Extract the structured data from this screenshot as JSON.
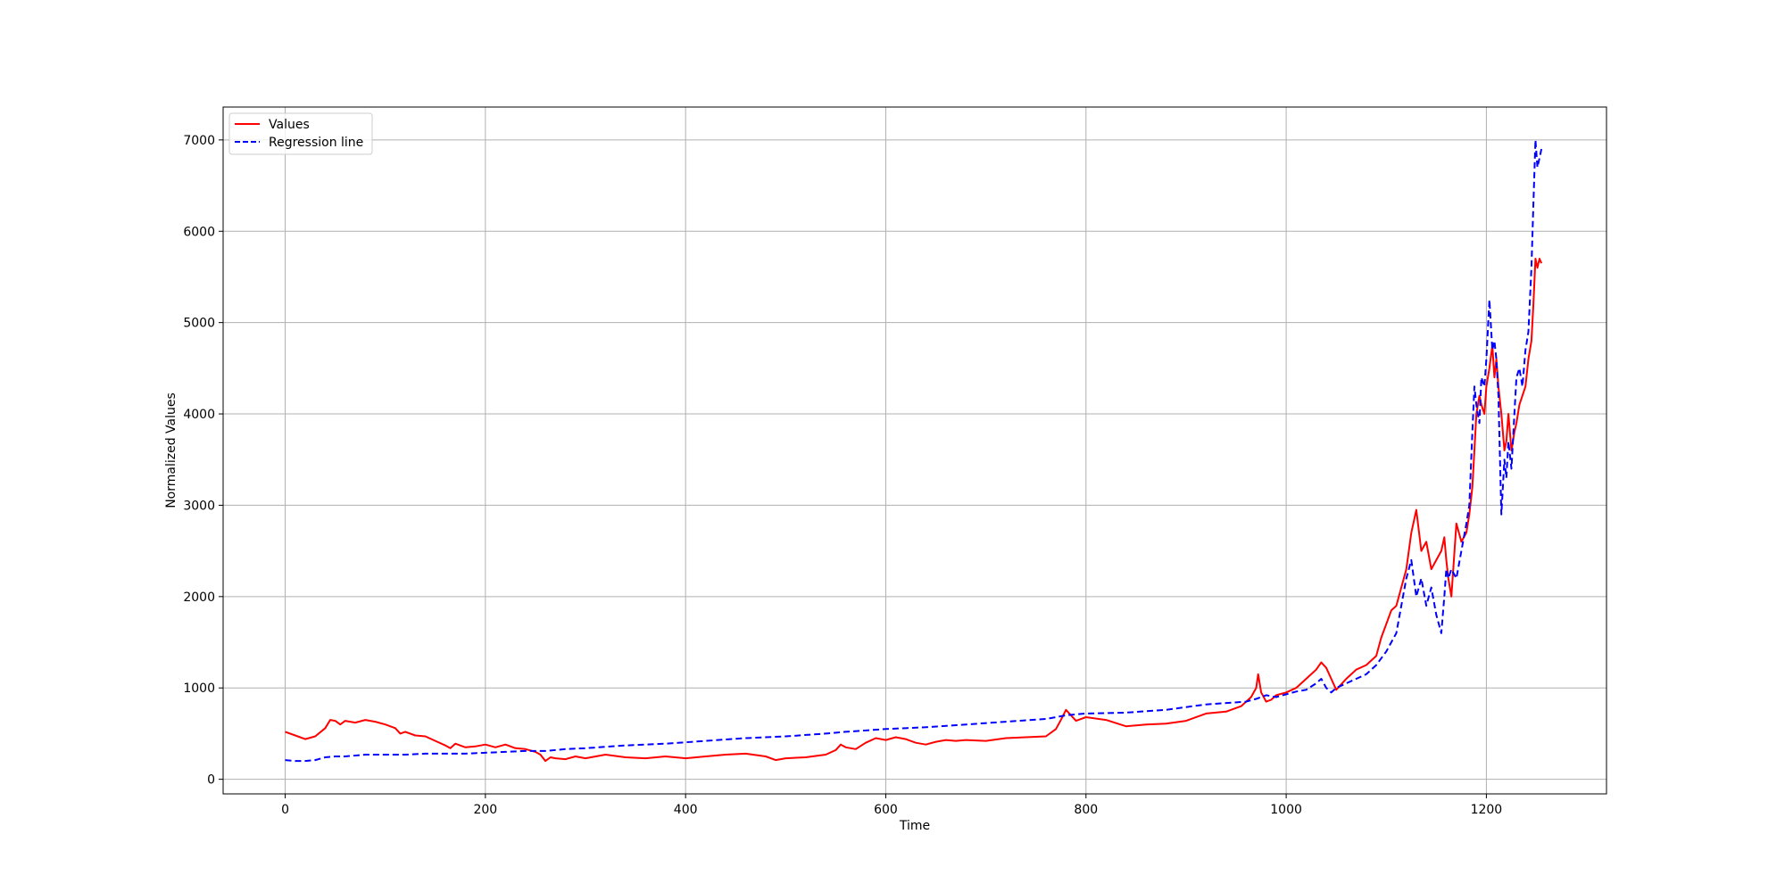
{
  "chart_data": {
    "type": "line",
    "title": "",
    "xlabel": "Time",
    "ylabel": "Normalized Values",
    "xlim": [
      -62,
      1320
    ],
    "ylim": [
      -160,
      7360
    ],
    "xticks": [
      0,
      200,
      400,
      600,
      800,
      1000,
      1200
    ],
    "yticks": [
      0,
      1000,
      2000,
      3000,
      4000,
      5000,
      6000,
      7000
    ],
    "grid": true,
    "legend_position": "top-left",
    "series": [
      {
        "name": "Values",
        "color": "#ff0000",
        "style": "solid",
        "x": [
          0,
          10,
          20,
          30,
          40,
          45,
          50,
          55,
          60,
          70,
          80,
          90,
          100,
          110,
          115,
          120,
          130,
          140,
          150,
          160,
          165,
          170,
          180,
          190,
          200,
          210,
          220,
          230,
          240,
          250,
          255,
          260,
          265,
          270,
          280,
          290,
          300,
          320,
          340,
          360,
          380,
          400,
          420,
          440,
          460,
          480,
          490,
          500,
          520,
          540,
          550,
          555,
          560,
          570,
          580,
          590,
          600,
          610,
          620,
          630,
          640,
          650,
          660,
          670,
          680,
          700,
          720,
          740,
          760,
          770,
          775,
          780,
          785,
          790,
          800,
          820,
          840,
          860,
          880,
          900,
          920,
          940,
          955,
          965,
          970,
          972,
          975,
          980,
          985,
          990,
          1000,
          1010,
          1020,
          1030,
          1035,
          1040,
          1045,
          1050,
          1060,
          1070,
          1080,
          1090,
          1095,
          1100,
          1105,
          1110,
          1115,
          1120,
          1125,
          1130,
          1135,
          1140,
          1145,
          1150,
          1155,
          1158,
          1160,
          1162,
          1165,
          1170,
          1175,
          1180,
          1183,
          1186,
          1188,
          1190,
          1193,
          1195,
          1198,
          1200,
          1203,
          1206,
          1208,
          1210,
          1212,
          1215,
          1218,
          1220,
          1222,
          1225,
          1228,
          1230,
          1233,
          1236,
          1239,
          1242,
          1245,
          1247,
          1249,
          1251,
          1253,
          1255
        ],
        "y": [
          520,
          480,
          440,
          470,
          560,
          650,
          640,
          600,
          640,
          620,
          650,
          630,
          600,
          560,
          500,
          520,
          480,
          470,
          420,
          370,
          340,
          390,
          350,
          360,
          380,
          350,
          380,
          340,
          330,
          300,
          270,
          200,
          240,
          230,
          220,
          250,
          230,
          270,
          240,
          230,
          250,
          230,
          250,
          270,
          280,
          250,
          210,
          230,
          240,
          270,
          320,
          380,
          350,
          330,
          400,
          450,
          430,
          460,
          440,
          400,
          380,
          410,
          430,
          420,
          430,
          420,
          450,
          460,
          470,
          550,
          650,
          760,
          700,
          640,
          680,
          650,
          580,
          600,
          610,
          640,
          720,
          740,
          800,
          900,
          1000,
          1150,
          950,
          850,
          870,
          920,
          950,
          1000,
          1100,
          1200,
          1280,
          1220,
          1100,
          980,
          1100,
          1200,
          1250,
          1350,
          1550,
          1700,
          1850,
          1900,
          2100,
          2300,
          2700,
          2950,
          2500,
          2600,
          2300,
          2400,
          2500,
          2650,
          2400,
          2200,
          2000,
          2800,
          2600,
          2700,
          2900,
          3200,
          3600,
          4000,
          4200,
          4100,
          4000,
          4300,
          4500,
          4750,
          4400,
          4600,
          4300,
          4000,
          3600,
          3700,
          4000,
          3600,
          3800,
          3900,
          4100,
          4200,
          4300,
          4600,
          4800,
          5200,
          5700,
          5600,
          5700,
          5650
        ]
      },
      {
        "name": "Regression line",
        "color": "#0000ff",
        "style": "dashed",
        "x": [
          0,
          10,
          20,
          30,
          40,
          50,
          60,
          80,
          100,
          120,
          140,
          160,
          180,
          200,
          220,
          240,
          260,
          280,
          300,
          340,
          380,
          420,
          460,
          500,
          540,
          560,
          600,
          640,
          680,
          720,
          760,
          780,
          800,
          840,
          880,
          900,
          920,
          960,
          970,
          975,
          980,
          990,
          1000,
          1010,
          1020,
          1030,
          1035,
          1040,
          1045,
          1050,
          1060,
          1070,
          1080,
          1090,
          1100,
          1105,
          1110,
          1115,
          1120,
          1125,
          1130,
          1135,
          1140,
          1145,
          1150,
          1155,
          1158,
          1160,
          1162,
          1165,
          1170,
          1175,
          1180,
          1183,
          1186,
          1188,
          1190,
          1193,
          1195,
          1198,
          1200,
          1203,
          1206,
          1208,
          1210,
          1212,
          1215,
          1218,
          1220,
          1222,
          1225,
          1228,
          1230,
          1233,
          1236,
          1239,
          1242,
          1245,
          1247,
          1249,
          1251,
          1253,
          1255
        ],
        "y": [
          210,
          200,
          200,
          210,
          240,
          250,
          250,
          270,
          270,
          270,
          280,
          280,
          280,
          290,
          300,
          310,
          310,
          330,
          340,
          370,
          390,
          420,
          450,
          470,
          500,
          520,
          550,
          570,
          600,
          630,
          660,
          700,
          720,
          730,
          760,
          790,
          820,
          850,
          880,
          900,
          920,
          900,
          930,
          960,
          980,
          1050,
          1100,
          1000,
          950,
          1000,
          1050,
          1100,
          1150,
          1250,
          1400,
          1500,
          1600,
          1900,
          2200,
          2400,
          2000,
          2200,
          1900,
          2100,
          1800,
          1600,
          2000,
          2300,
          2200,
          2300,
          2200,
          2500,
          2800,
          3000,
          3800,
          4300,
          4100,
          3900,
          4400,
          4300,
          4600,
          5250,
          4700,
          4800,
          4600,
          4200,
          2900,
          3500,
          3300,
          3700,
          3400,
          4000,
          4400,
          4500,
          4300,
          4700,
          4900,
          5600,
          6300,
          7000,
          6700,
          6800,
          6900
        ]
      }
    ]
  }
}
